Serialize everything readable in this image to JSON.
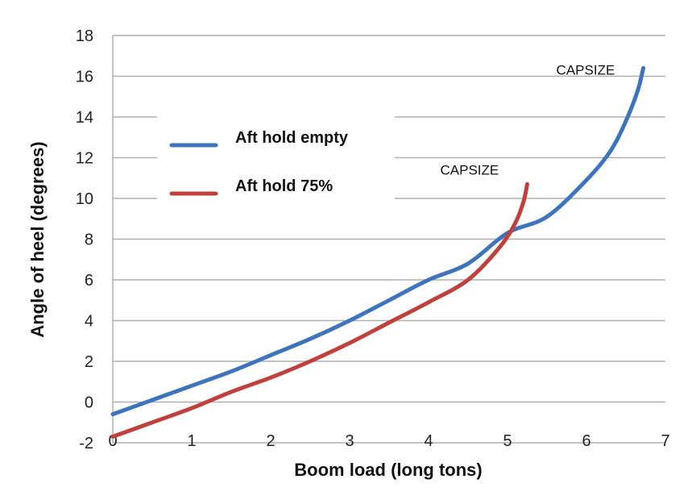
{
  "chart_data": {
    "type": "line",
    "title": "",
    "xlabel": "Boom load (long tons)",
    "ylabel": "Angle of heel (degrees)",
    "xlim": [
      0,
      7
    ],
    "ylim": [
      -2,
      18
    ],
    "xticks": [
      0,
      1,
      2,
      3,
      4,
      5,
      6,
      7
    ],
    "yticks": [
      -2,
      0,
      2,
      4,
      6,
      8,
      10,
      12,
      14,
      16,
      18
    ],
    "grid": "horizontal",
    "legend": {
      "placement": "upper-left"
    },
    "series": [
      {
        "name": "Aft hold empty",
        "color": "#3d74bc",
        "x": [
          0,
          0.5,
          1,
          1.5,
          2,
          2.5,
          3,
          3.5,
          4,
          4.5,
          5,
          5.5,
          6,
          6.3,
          6.5,
          6.65,
          6.72
        ],
        "y": [
          -0.6,
          0.1,
          0.8,
          1.5,
          2.3,
          3.1,
          4.0,
          5.0,
          6.0,
          6.8,
          8.3,
          9.1,
          10.9,
          12.3,
          13.8,
          15.3,
          16.4
        ]
      },
      {
        "name": "Aft hold 75%",
        "color": "#c0403c",
        "x": [
          0,
          0.5,
          1,
          1.5,
          2,
          2.5,
          3,
          3.5,
          4,
          4.5,
          4.9,
          5.1,
          5.2,
          5.25
        ],
        "y": [
          -1.7,
          -1.0,
          -0.3,
          0.5,
          1.2,
          2.0,
          2.9,
          3.9,
          4.9,
          6.0,
          7.6,
          8.8,
          9.8,
          10.7
        ]
      }
    ],
    "annotations": [
      {
        "text": "CAPSIZE",
        "series": 0
      },
      {
        "text": "CAPSIZE",
        "series": 1
      }
    ]
  }
}
